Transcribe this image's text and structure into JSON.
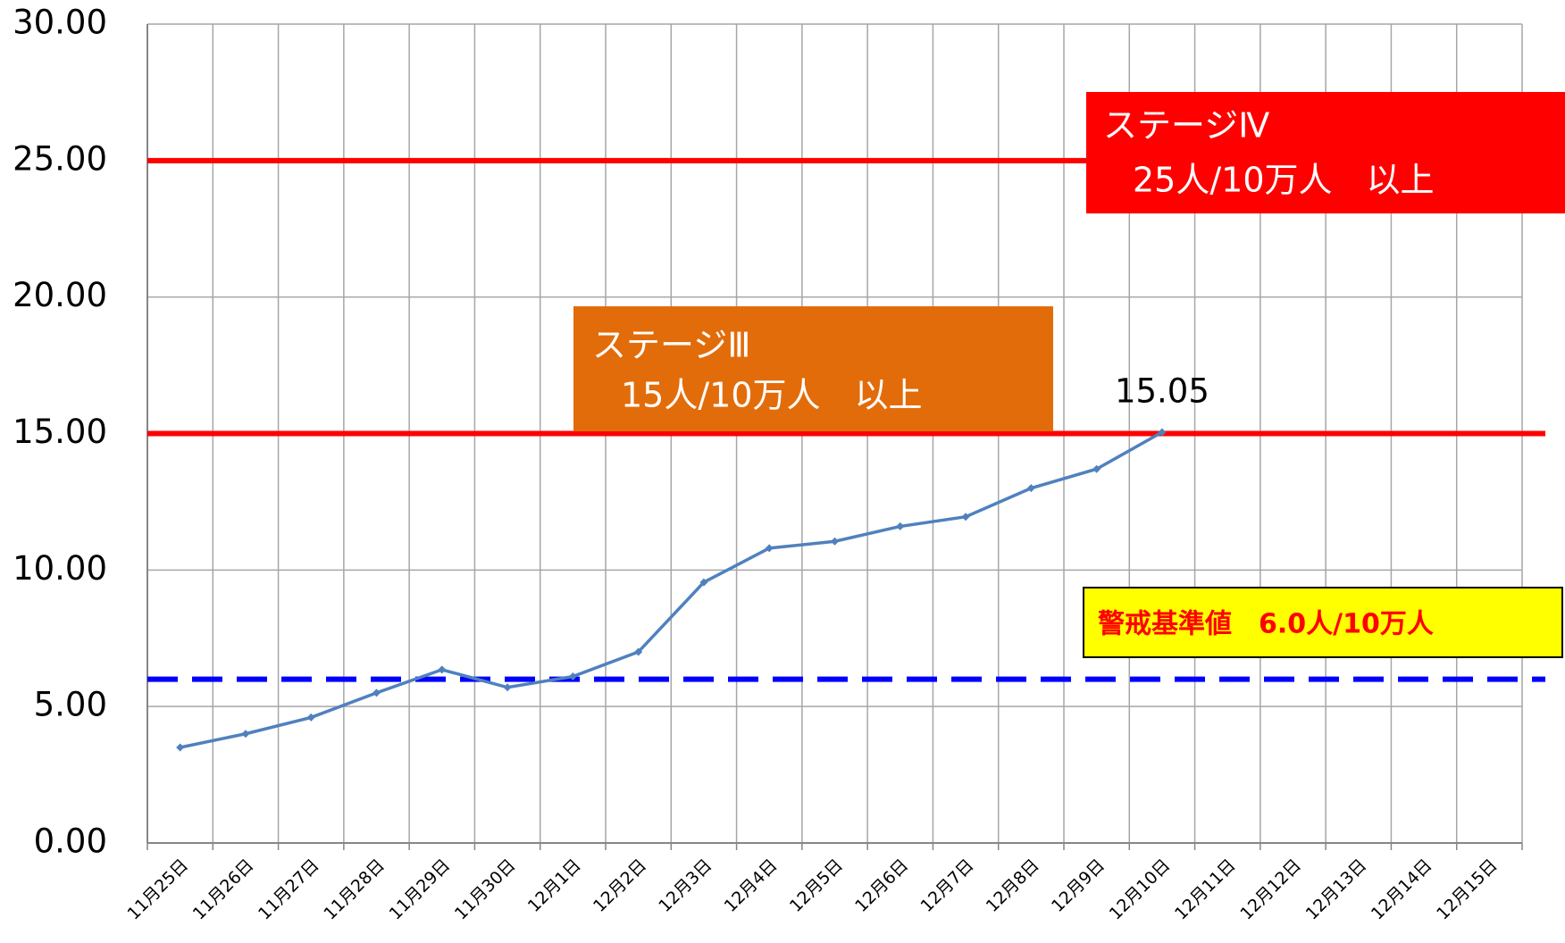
{
  "chart_data": {
    "type": "line",
    "categories": [
      "11月25日",
      "11月26日",
      "11月27日",
      "11月28日",
      "11月29日",
      "11月30日",
      "12月1日",
      "12月2日",
      "12月3日",
      "12月4日",
      "12月5日",
      "12月6日",
      "12月7日",
      "12月8日",
      "12月9日",
      "12月10日",
      "12月11日",
      "12月12日",
      "12月13日",
      "12月14日",
      "12月15日"
    ],
    "series": [
      {
        "color": "#4f81bd",
        "values": [
          3.5,
          4.0,
          4.6,
          5.5,
          6.35,
          5.7,
          6.1,
          7.0,
          9.55,
          10.8,
          11.05,
          11.6,
          11.95,
          13.0,
          13.7,
          15.05,
          null,
          null,
          null,
          null,
          null
        ],
        "value_labels": [
          null,
          null,
          null,
          null,
          null,
          null,
          null,
          null,
          null,
          null,
          null,
          null,
          null,
          null,
          null,
          "15.05",
          null,
          null,
          null,
          null,
          null
        ]
      }
    ],
    "ylim": [
      0,
      30
    ],
    "yticks": [
      {
        "value": 0,
        "label": "0.00"
      },
      {
        "value": 5,
        "label": "5.00"
      },
      {
        "value": 10,
        "label": "10.00"
      },
      {
        "value": 15,
        "label": "15.00"
      },
      {
        "value": 20,
        "label": "20.00"
      },
      {
        "value": 25,
        "label": "25.00"
      },
      {
        "value": 30,
        "label": "30.00"
      }
    ],
    "grid": true,
    "hlines": [
      {
        "value": 25,
        "color": "#ff0000",
        "dash": false
      },
      {
        "value": 15,
        "color": "#ff0000",
        "dash": false
      },
      {
        "value": 6,
        "color": "#0000ff",
        "dash": true
      }
    ],
    "annotations": [
      {
        "lines": [
          "ステージⅣ",
          "25人/10万人　以上"
        ],
        "color": "#ff0000",
        "text_color": "#ffffff"
      },
      {
        "lines": [
          "ステージⅢ",
          "15人/10万人　以上"
        ],
        "color": "#e36c0a",
        "text_color": "#ffffff"
      },
      {
        "lines": [
          "警戒基準値　6.0人/10万人"
        ],
        "color": "#ffff00",
        "text_color": "#ff0000"
      }
    ]
  }
}
